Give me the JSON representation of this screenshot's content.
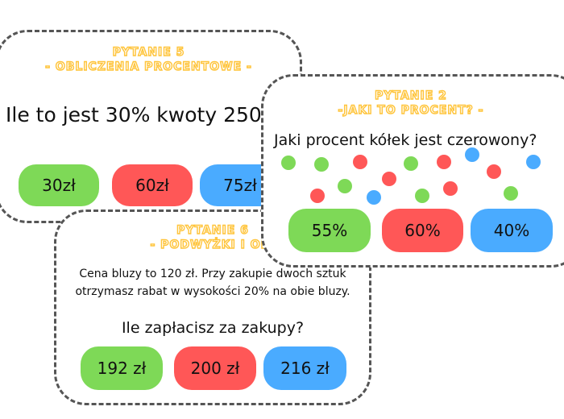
{
  "card5": {
    "title_line1": "PYTANIE 5",
    "title_line2": "- OBLICZENIA PROCENTOWE -",
    "question": "Ile to jest 30% kwoty 250",
    "answers": [
      "30zł",
      "60zł",
      "75zł"
    ]
  },
  "card6": {
    "title_line1": "PYTANIE 6",
    "title_line2": "- PODWYŻKI I OBI",
    "text_line1": "Cena bluzy to 120 zł. Przy zakupie dwoch sztuk",
    "text_line2": "otrzymasz rabat w wysokości 20% na obie bluzy.",
    "question": "Ile zapłacisz za zakupy?",
    "answers": [
      "192 zł",
      "200 zł",
      "216 zł"
    ]
  },
  "card2": {
    "title_line1": "PYTANIE 2",
    "title_line2": "-JAKI TO PROCENT? -",
    "question": "Jaki procent kółek jest czerowony?",
    "answers": [
      "55%",
      "60%",
      "40%"
    ],
    "dot_colors": [
      "green",
      "green",
      "red",
      "green",
      "red",
      "blue",
      "blue",
      "red",
      "red",
      "green",
      "red",
      "blue",
      "green",
      "red",
      "green"
    ]
  },
  "colors": {
    "green": "#7ed957",
    "red": "#ff5757",
    "blue": "#4aabff",
    "title": "#ffc43a",
    "border": "#555555"
  }
}
